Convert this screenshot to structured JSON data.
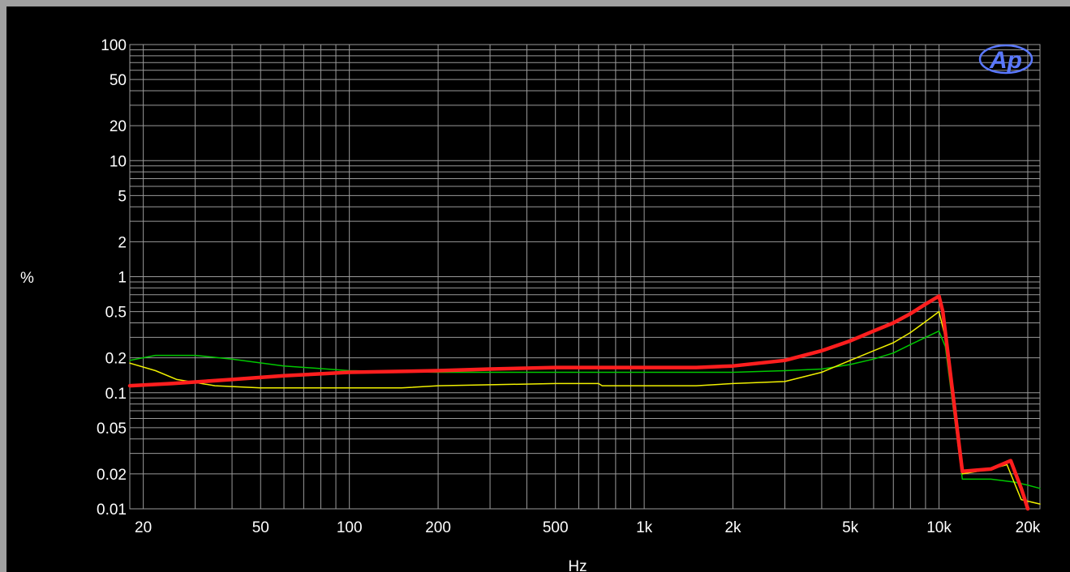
{
  "chart_data": {
    "type": "line",
    "title": "",
    "xlabel": "Hz",
    "ylabel": "%",
    "x_scale": "log",
    "y_scale": "log",
    "xlim": [
      18,
      22000
    ],
    "ylim": [
      0.01,
      100
    ],
    "grid": true,
    "x_ticks": [
      {
        "value": 20,
        "label": "20"
      },
      {
        "value": 50,
        "label": "50"
      },
      {
        "value": 100,
        "label": "100"
      },
      {
        "value": 200,
        "label": "200"
      },
      {
        "value": 500,
        "label": "500"
      },
      {
        "value": 1000,
        "label": "1k"
      },
      {
        "value": 2000,
        "label": "2k"
      },
      {
        "value": 5000,
        "label": "5k"
      },
      {
        "value": 10000,
        "label": "10k"
      },
      {
        "value": 20000,
        "label": "20k"
      }
    ],
    "y_ticks": [
      {
        "value": 100,
        "label": "100"
      },
      {
        "value": 50,
        "label": "50"
      },
      {
        "value": 20,
        "label": "20"
      },
      {
        "value": 10,
        "label": "10"
      },
      {
        "value": 5,
        "label": "5"
      },
      {
        "value": 2,
        "label": "2"
      },
      {
        "value": 1,
        "label": "1"
      },
      {
        "value": 0.5,
        "label": "0.5"
      },
      {
        "value": 0.2,
        "label": "0.2"
      },
      {
        "value": 0.1,
        "label": "0.1"
      },
      {
        "value": 0.05,
        "label": "0.05"
      },
      {
        "value": 0.02,
        "label": "0.02"
      },
      {
        "value": 0.01,
        "label": "0.01"
      }
    ],
    "series": [
      {
        "color": "#00c800",
        "width": 1.5,
        "points": [
          [
            18,
            0.19
          ],
          [
            22,
            0.21
          ],
          [
            30,
            0.21
          ],
          [
            40,
            0.195
          ],
          [
            60,
            0.17
          ],
          [
            100,
            0.155
          ],
          [
            200,
            0.15
          ],
          [
            500,
            0.15
          ],
          [
            1000,
            0.15
          ],
          [
            2000,
            0.15
          ],
          [
            3000,
            0.155
          ],
          [
            4000,
            0.16
          ],
          [
            5000,
            0.175
          ],
          [
            6000,
            0.195
          ],
          [
            7000,
            0.22
          ],
          [
            8000,
            0.26
          ],
          [
            9000,
            0.3
          ],
          [
            10000,
            0.34
          ],
          [
            10500,
            0.25
          ],
          [
            12000,
            0.018
          ],
          [
            15000,
            0.018
          ],
          [
            18000,
            0.017
          ],
          [
            20000,
            0.016
          ],
          [
            22000,
            0.015
          ]
        ]
      },
      {
        "color": "#f0f000",
        "width": 1.5,
        "points": [
          [
            18,
            0.18
          ],
          [
            22,
            0.155
          ],
          [
            26,
            0.13
          ],
          [
            35,
            0.115
          ],
          [
            50,
            0.11
          ],
          [
            100,
            0.11
          ],
          [
            150,
            0.11
          ],
          [
            200,
            0.115
          ],
          [
            500,
            0.12
          ],
          [
            700,
            0.12
          ],
          [
            720,
            0.115
          ],
          [
            1500,
            0.115
          ],
          [
            2000,
            0.12
          ],
          [
            3000,
            0.125
          ],
          [
            4000,
            0.15
          ],
          [
            5000,
            0.19
          ],
          [
            6000,
            0.23
          ],
          [
            7000,
            0.27
          ],
          [
            8000,
            0.33
          ],
          [
            9000,
            0.41
          ],
          [
            10000,
            0.5
          ],
          [
            10500,
            0.3
          ],
          [
            12000,
            0.02
          ],
          [
            15000,
            0.022
          ],
          [
            17000,
            0.024
          ],
          [
            19000,
            0.012
          ],
          [
            22000,
            0.011
          ]
        ]
      },
      {
        "color": "#ff1e1e",
        "width": 4.5,
        "points": [
          [
            18,
            0.115
          ],
          [
            25,
            0.12
          ],
          [
            40,
            0.13
          ],
          [
            60,
            0.14
          ],
          [
            100,
            0.15
          ],
          [
            200,
            0.155
          ],
          [
            300,
            0.16
          ],
          [
            500,
            0.165
          ],
          [
            1000,
            0.165
          ],
          [
            1500,
            0.165
          ],
          [
            2000,
            0.17
          ],
          [
            3000,
            0.19
          ],
          [
            4000,
            0.23
          ],
          [
            5000,
            0.28
          ],
          [
            6000,
            0.34
          ],
          [
            7000,
            0.4
          ],
          [
            8000,
            0.48
          ],
          [
            9000,
            0.58
          ],
          [
            10000,
            0.68
          ],
          [
            10300,
            0.5
          ],
          [
            12000,
            0.021
          ],
          [
            15000,
            0.022
          ],
          [
            17500,
            0.026
          ],
          [
            19000,
            0.015
          ],
          [
            20000,
            0.01
          ]
        ]
      }
    ]
  },
  "logo": {
    "text": "Ap",
    "color": "#5a78ff"
  }
}
